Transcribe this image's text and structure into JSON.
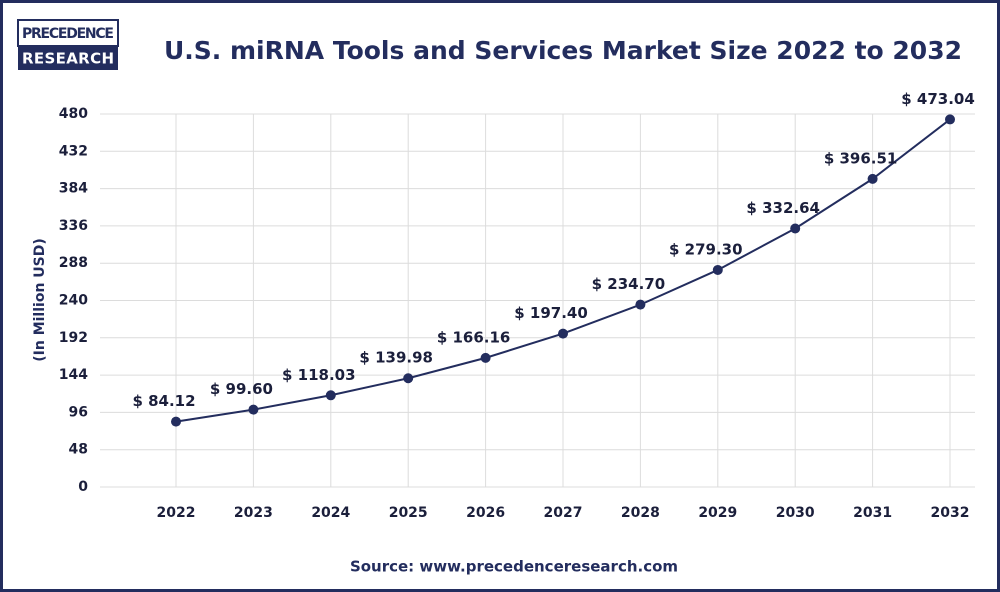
{
  "logo": {
    "line1": "PRECEDENCE",
    "line2": "RESEARCH"
  },
  "chart_data": {
    "type": "line",
    "title": "U.S. miRNA Tools and Services Market Size 2022 to 2032",
    "y_label": "(In Million USD)",
    "source": "Source: www.precedenceresearch.com",
    "categories": [
      "2022",
      "2023",
      "2024",
      "2025",
      "2026",
      "2027",
      "2028",
      "2029",
      "2030",
      "2031",
      "2032"
    ],
    "series": [
      {
        "name": "U.S. miRNA Tools and Services Market Size",
        "color": "#232d5e",
        "values": [
          84.12,
          99.6,
          118.03,
          139.98,
          166.16,
          197.4,
          234.7,
          279.3,
          332.64,
          396.51,
          473.04
        ],
        "value_labels": [
          "$ 84.12",
          "$ 99.60",
          "$ 118.03",
          "$ 139.98",
          "$ 166.16",
          "$ 197.40",
          "$ 234.70",
          "$ 279.30",
          "$ 332.64",
          "$ 396.51",
          "$ 473.04"
        ]
      }
    ],
    "ylim": [
      0,
      480
    ],
    "yticks": [
      0,
      48,
      96,
      144,
      192,
      240,
      288,
      336,
      384,
      432,
      480
    ],
    "grid": true
  }
}
